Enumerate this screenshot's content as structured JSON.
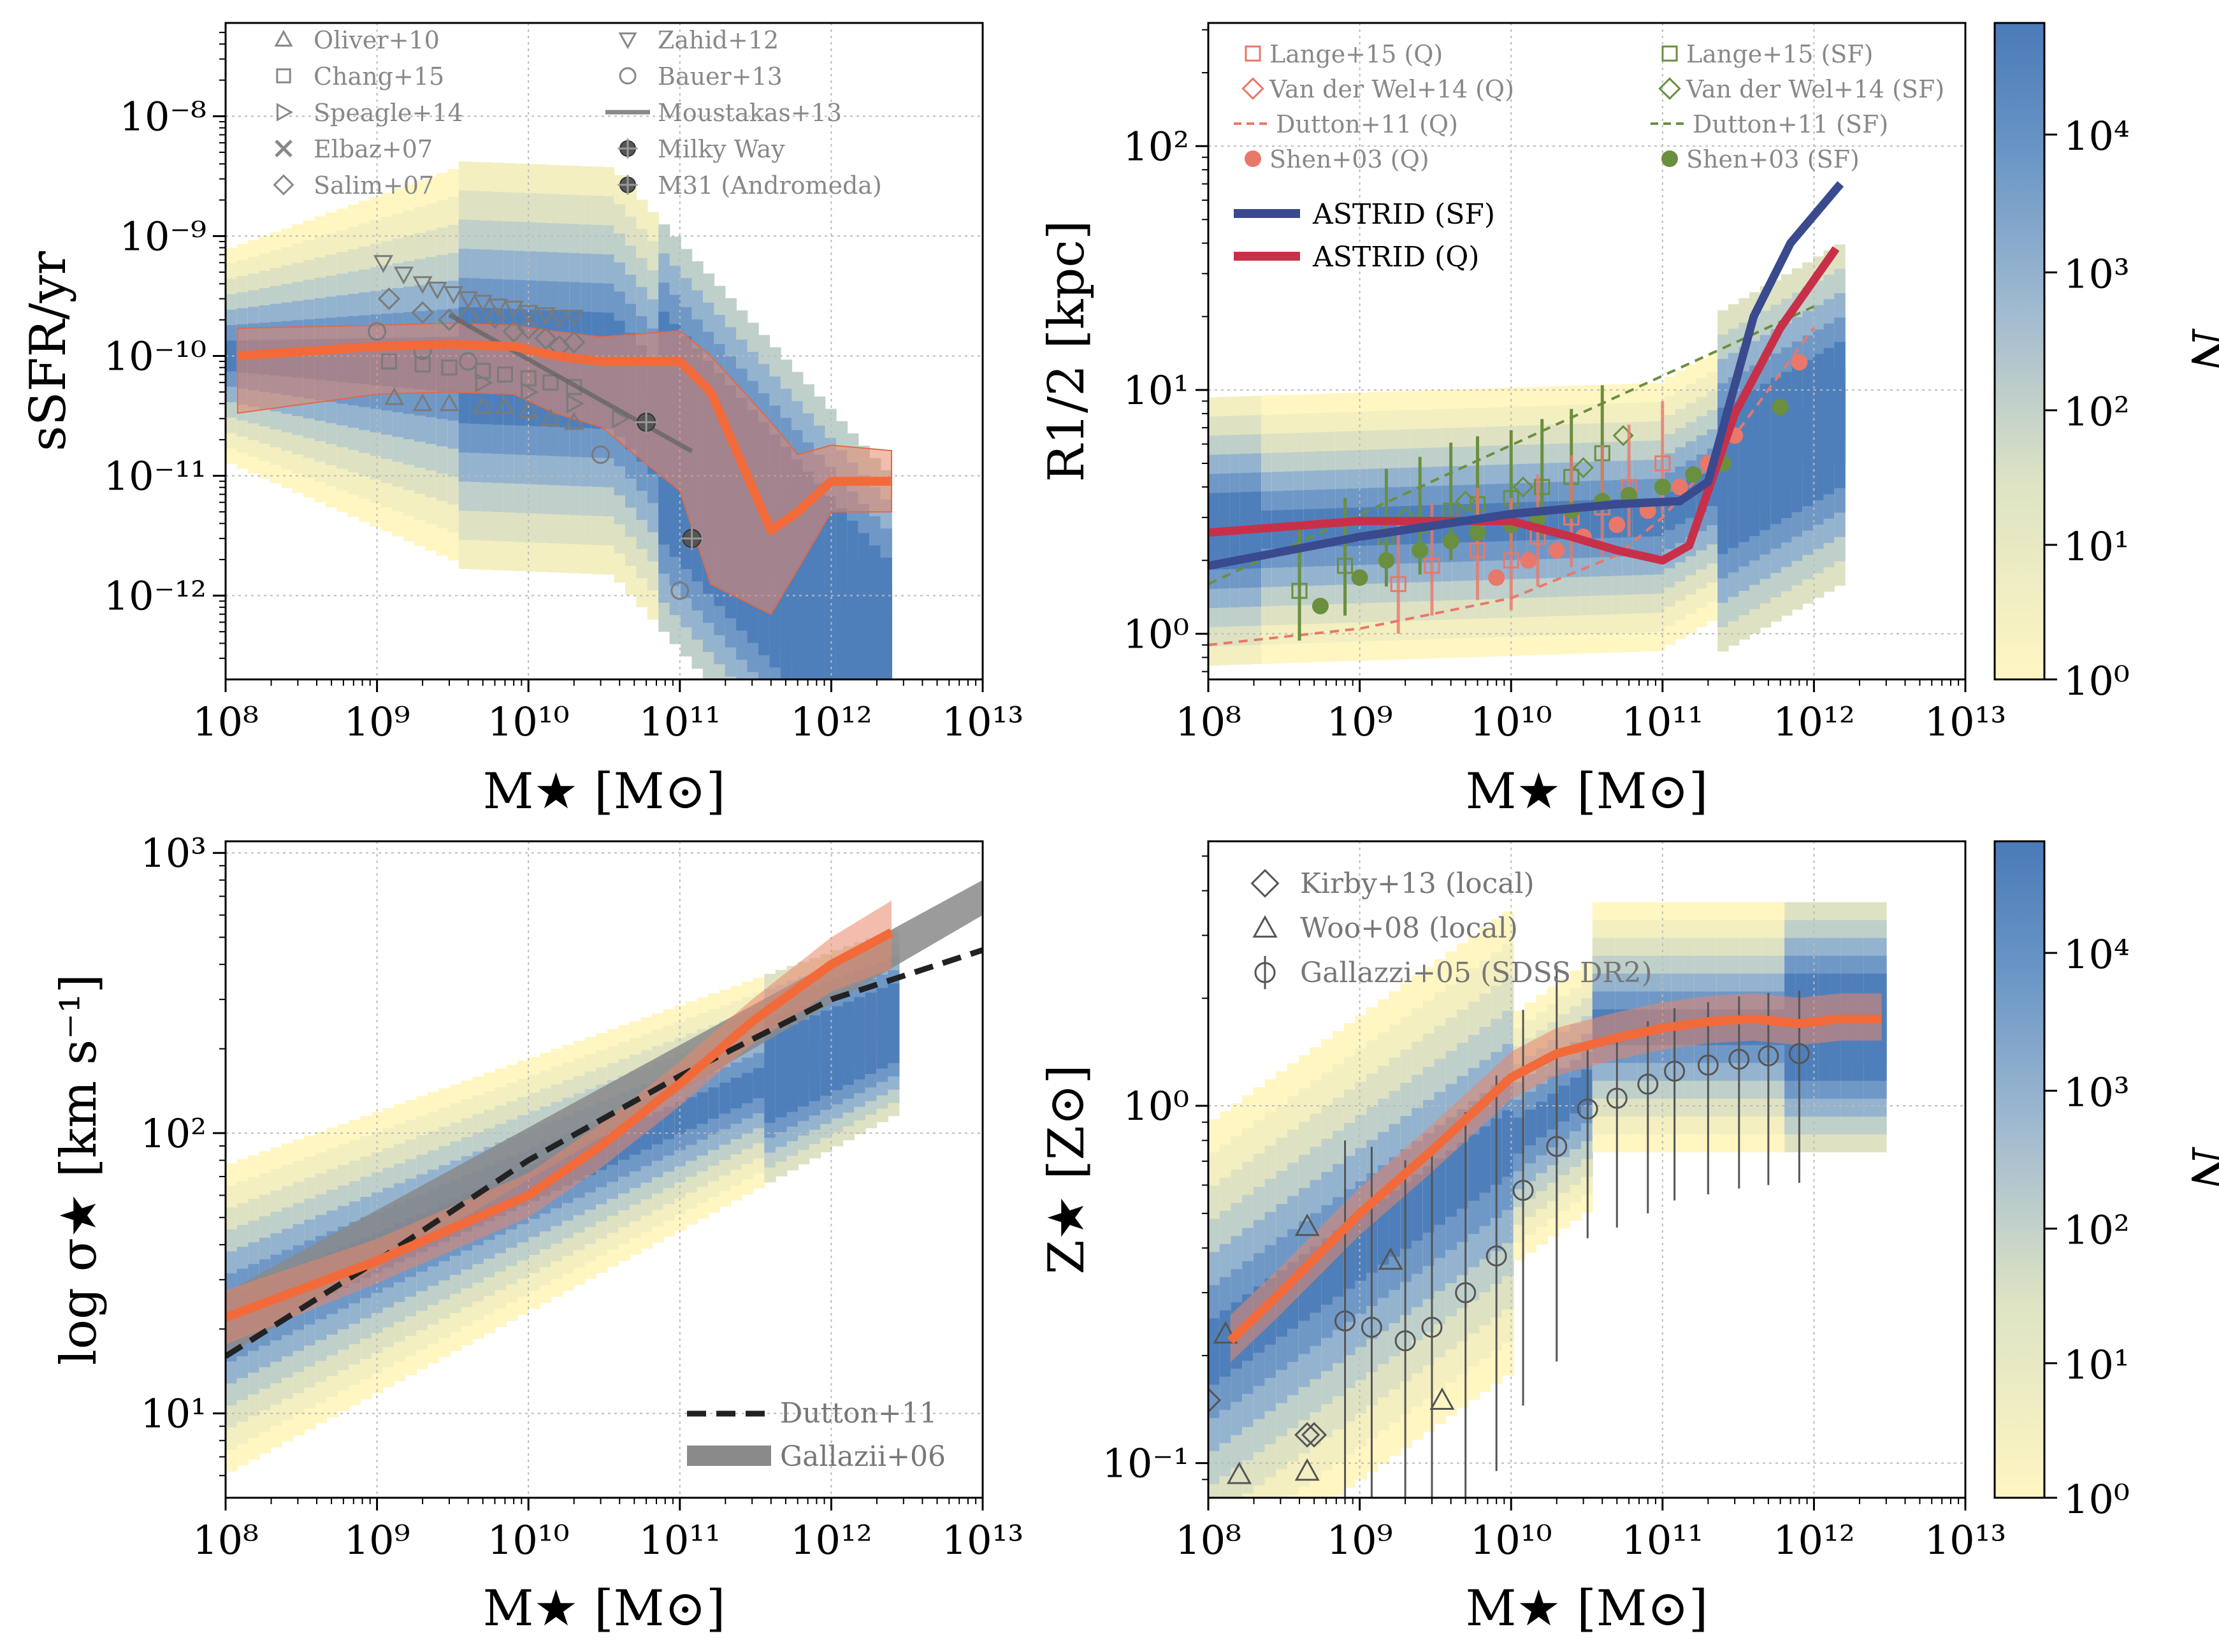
{
  "colors": {
    "astrid_median": "#f26a3a",
    "astrid_band": "#e8866a",
    "astrid_sf": "#3a4a8e",
    "astrid_q": "#c8304a",
    "obs_gray": "#7a7a7a",
    "sf_green": "#6a8f3f",
    "q_red": "#e8786a",
    "density_high": "#4a7ab8",
    "density_low": "#fff6c2"
  },
  "chart_data": [
    {
      "id": "ssfr",
      "type": "scatter",
      "ylabel": "sSFR/yr",
      "xlabel": "M★ [M⊙]",
      "xlog": true,
      "ylog": true,
      "xlim": [
        100000000.0,
        10000000000000.0
      ],
      "ylim": [
        2e-13,
        6e-08
      ],
      "x_ticks": [
        "10⁸",
        "10⁹",
        "10¹⁰",
        "10¹¹",
        "10¹²",
        "10¹³"
      ],
      "y_ticks": [
        "10⁻⁸",
        "10⁻⁹",
        "10⁻¹⁰",
        "10⁻¹¹",
        "10⁻¹²"
      ],
      "grid": true,
      "legend": [
        {
          "label": "Oliver+10",
          "marker": "triangle-up"
        },
        {
          "label": "Zahid+12",
          "marker": "triangle-down"
        },
        {
          "label": "Chang+15",
          "marker": "square"
        },
        {
          "label": "Bauer+13",
          "marker": "circle"
        },
        {
          "label": "Speagle+14",
          "marker": "triangle-right"
        },
        {
          "label": "Moustakas+13",
          "marker": "line"
        },
        {
          "label": "Elbaz+07",
          "marker": "x"
        },
        {
          "label": "Milky Way",
          "marker": "filled-circle-cross"
        },
        {
          "label": "Salim+07",
          "marker": "diamond"
        },
        {
          "label": "M31 (Andromeda)",
          "marker": "filled-circle-cross"
        }
      ],
      "series": [
        {
          "name": "ASTRID median",
          "x": [
            120000000.0,
            1000000000.0,
            3000000000.0,
            8000000000.0,
            15000000000.0,
            30000000000.0,
            100000000000.0,
            160000000000.0,
            400000000000.0,
            600000000000.0,
            1000000000000.0,
            2500000000000.0
          ],
          "y": [
            1e-10,
            1.2e-10,
            1.25e-10,
            1.2e-10,
            1e-10,
            9e-11,
            9e-11,
            5e-11,
            3.5e-12,
            5e-12,
            9e-12,
            9e-12
          ]
        },
        {
          "name": "Oliver+10",
          "x": [
            1300000000.0,
            2000000000.0,
            3000000000.0,
            5000000000.0,
            7000000000.0,
            10000000000.0,
            14000000000.0,
            20000000000.0
          ],
          "y": [
            4.5e-11,
            4e-11,
            4e-11,
            3.8e-11,
            3.8e-11,
            3.5e-11,
            3e-11,
            2.8e-11
          ]
        },
        {
          "name": "Zahid+12",
          "x": [
            1100000000.0,
            1500000000.0,
            2000000000.0,
            2500000000.0,
            3200000000.0,
            4000000000.0,
            5000000000.0,
            6300000000.0,
            8000000000.0,
            10000000000.0,
            13000000000.0,
            16000000000.0,
            20000000000.0
          ],
          "y": [
            6e-10,
            4.8e-10,
            4e-10,
            3.6e-10,
            3.3e-10,
            3e-10,
            2.8e-10,
            2.6e-10,
            2.5e-10,
            2.3e-10,
            2.2e-10,
            2.1e-10,
            2.1e-10
          ]
        },
        {
          "name": "Chang+15",
          "x": [
            1200000000.0,
            2000000000.0,
            3000000000.0,
            5000000000.0,
            7000000000.0,
            10000000000.0,
            14000000000.0,
            20000000000.0
          ],
          "y": [
            9e-11,
            8.5e-11,
            8e-11,
            7.5e-11,
            7e-11,
            6.5e-11,
            6e-11,
            5.5e-11
          ]
        },
        {
          "name": "Bauer+13",
          "x": [
            1000000000.0,
            2000000000.0,
            4000000000.0,
            30000000000.0,
            100000000000.0
          ],
          "y": [
            1.6e-10,
            1.1e-10,
            9e-11,
            1.5e-11,
            1.1e-12
          ]
        },
        {
          "name": "Speagle+14",
          "x": [
            5000000000.0,
            10000000000.0,
            20000000000.0,
            40000000000.0
          ],
          "y": [
            6e-11,
            5e-11,
            4e-11,
            3e-11
          ]
        },
        {
          "name": "Salim+07",
          "x": [
            1200000000.0,
            2000000000.0,
            3000000000.0,
            4000000000.0,
            6000000000.0,
            8000000000.0,
            10000000000.0,
            13000000000.0,
            16000000000.0,
            20000000000.0
          ],
          "y": [
            3e-10,
            2.3e-10,
            2e-10,
            2.1e-10,
            2.1e-10,
            1.6e-10,
            1.7e-10,
            1.4e-10,
            1.2e-10,
            1.3e-10
          ]
        },
        {
          "name": "Moustakas+13",
          "x": [
            3000000000.0,
            120000000000.0
          ],
          "y": [
            2.2e-10,
            1.6e-11
          ]
        },
        {
          "name": "Milky Way",
          "x": [
            60000000000.0
          ],
          "y": [
            2.8e-11
          ]
        },
        {
          "name": "M31 (Andromeda)",
          "x": [
            120000000000.0
          ],
          "y": [
            3e-12
          ]
        }
      ]
    },
    {
      "id": "size",
      "type": "scatter",
      "ylabel": "R1/2 [kpc]",
      "xlabel": "M★ [M⊙]",
      "xlog": true,
      "ylog": true,
      "xlim": [
        100000000.0,
        10000000000000.0
      ],
      "ylim": [
        0.65,
        320
      ],
      "x_ticks": [
        "10⁸",
        "10⁹",
        "10¹⁰",
        "10¹¹",
        "10¹²",
        "10¹³"
      ],
      "y_ticks": [
        "10²",
        "10¹",
        "10⁰"
      ],
      "grid": true,
      "legend": [
        {
          "label": "Lange+15 (Q)",
          "marker": "square"
        },
        {
          "label": "Lange+15 (SF)",
          "marker": "square"
        },
        {
          "label": "Van der Wel+14 (Q)",
          "marker": "diamond"
        },
        {
          "label": "Van der Wel+14 (SF)",
          "marker": "diamond"
        },
        {
          "label": "Dutton+11 (Q)",
          "marker": "dashed"
        },
        {
          "label": "Dutton+11 (SF)",
          "marker": "dashed"
        },
        {
          "label": "Shen+03 (Q)",
          "marker": "filled-circle"
        },
        {
          "label": "Shen+03 (SF)",
          "marker": "filled-circle"
        },
        {
          "label": "ASTRID (SF)",
          "marker": "line"
        },
        {
          "label": "ASTRID (Q)",
          "marker": "line"
        }
      ],
      "series": [
        {
          "name": "ASTRID (SF)",
          "x": [
            100000000.0,
            1000000000.0,
            10000000000.0,
            50000000000.0,
            130000000000.0,
            200000000000.0,
            400000000000.0,
            700000000000.0,
            1500000000000.0
          ],
          "y": [
            1.9,
            2.5,
            3.1,
            3.4,
            3.5,
            4.2,
            20,
            40,
            70
          ]
        },
        {
          "name": "ASTRID (Q)",
          "x": [
            100000000.0,
            1000000000.0,
            10000000000.0,
            25000000000.0,
            50000000000.0,
            100000000000.0,
            150000000000.0,
            300000000000.0,
            600000000000.0,
            1400000000000.0
          ],
          "y": [
            2.6,
            2.9,
            2.9,
            2.5,
            2.2,
            2.0,
            2.3,
            8,
            18,
            38
          ]
        },
        {
          "name": "Shen+03 (SF)",
          "x": [
            550000000.0,
            1000000000.0,
            1500000000.0,
            2500000000.0,
            4000000000.0,
            6000000000.0,
            10000000000.0,
            15000000000.0,
            25000000000.0,
            40000000000.0,
            60000000000.0,
            100000000000.0,
            160000000000.0,
            250000000000.0,
            600000000000.0
          ],
          "y": [
            1.3,
            1.7,
            2.0,
            2.2,
            2.4,
            2.6,
            2.8,
            3.0,
            3.2,
            3.5,
            3.7,
            4.0,
            4.5,
            5.0,
            8.5
          ]
        },
        {
          "name": "Shen+03 (Q)",
          "x": [
            8000000000.0,
            13000000000.0,
            20000000000.0,
            30000000000.0,
            50000000000.0,
            80000000000.0,
            130000000000.0,
            200000000000.0,
            300000000000.0,
            800000000000.0
          ],
          "y": [
            1.7,
            2.0,
            2.2,
            2.5,
            2.8,
            3.2,
            4.0,
            5.0,
            6.5,
            13
          ]
        },
        {
          "name": "Dutton+11 (SF)",
          "x": [
            100000000.0,
            1000000000000.0
          ],
          "y": [
            1.6,
            22
          ]
        },
        {
          "name": "Dutton+11 (Q)",
          "x": [
            100000000.0,
            1000000000000.0
          ],
          "y": [
            0.9,
            18
          ]
        }
      ]
    },
    {
      "id": "sigma",
      "type": "line",
      "ylabel": "log σ★ [km s⁻¹]",
      "xlabel": "M★ [M⊙]",
      "xlog": true,
      "ylog": true,
      "xlim": [
        100000000.0,
        10000000000000.0
      ],
      "ylim": [
        5,
        1100
      ],
      "x_ticks": [
        "10⁸",
        "10⁹",
        "10¹⁰",
        "10¹¹",
        "10¹²",
        "10¹³"
      ],
      "y_ticks": [
        "10³",
        "10²",
        "10¹"
      ],
      "grid": true,
      "legend": [
        {
          "label": "Dutton+11",
          "marker": "dashed"
        },
        {
          "label": "Gallazii+06",
          "marker": "band"
        }
      ],
      "series": [
        {
          "name": "ASTRID median",
          "x": [
            100000000.0,
            1000000000.0,
            10000000000.0,
            30000000000.0,
            100000000000.0,
            300000000000.0,
            1000000000000.0,
            2500000000000.0
          ],
          "y": [
            22,
            35,
            60,
            90,
            150,
            250,
            400,
            520
          ]
        },
        {
          "name": "Dutton+11",
          "x": [
            100000000.0,
            1000000000.0,
            10000000000.0,
            100000000000.0,
            1000000000000.0,
            10000000000000.0
          ],
          "y": [
            16,
            35,
            80,
            160,
            300,
            450
          ]
        },
        {
          "name": "Gallazii+06",
          "x": [
            100000000.0,
            10000000000000.0
          ],
          "y": [
            20,
            780
          ]
        }
      ]
    },
    {
      "id": "metallicity",
      "type": "scatter",
      "ylabel": "Z★ [Z⊙]",
      "xlabel": "M★ [M⊙]",
      "xlog": true,
      "ylog": true,
      "xlim": [
        100000000.0,
        10000000000000.0
      ],
      "ylim": [
        0.08,
        5.5
      ],
      "x_ticks": [
        "10⁸",
        "10⁹",
        "10¹⁰",
        "10¹¹",
        "10¹²",
        "10¹³"
      ],
      "y_ticks": [
        "10⁰",
        "10⁻¹"
      ],
      "grid": true,
      "legend": [
        {
          "label": "Kirby+13 (local)",
          "marker": "diamond"
        },
        {
          "label": "Woo+08 (local)",
          "marker": "triangle-up"
        },
        {
          "label": "Gallazzi+05 (SDSS DR2)",
          "marker": "circle-errorbar"
        }
      ],
      "series": [
        {
          "name": "ASTRID median",
          "x": [
            140000000.0,
            300000000.0,
            1000000000.0,
            3000000000.0,
            10000000000.0,
            20000000000.0,
            50000000000.0,
            100000000000.0,
            200000000000.0,
            400000000000.0,
            800000000000.0,
            1500000000000.0,
            2800000000000.0
          ],
          "y": [
            0.22,
            0.3,
            0.5,
            0.75,
            1.2,
            1.4,
            1.55,
            1.65,
            1.72,
            1.75,
            1.7,
            1.75,
            1.75
          ]
        },
        {
          "name": "Gallazzi+05 (SDSS DR2)",
          "x": [
            800000000.0,
            1200000000.0,
            2000000000.0,
            3000000000.0,
            5000000000.0,
            8000000000.0,
            12000000000.0,
            20000000000.0,
            32000000000.0,
            50000000000.0,
            80000000000.0,
            120000000000.0,
            200000000000.0,
            320000000000.0,
            500000000000.0,
            800000000000.0
          ],
          "y": [
            0.25,
            0.24,
            0.22,
            0.24,
            0.3,
            0.38,
            0.58,
            0.77,
            0.98,
            1.05,
            1.15,
            1.25,
            1.3,
            1.35,
            1.38,
            1.4
          ]
        },
        {
          "name": "Woo+08 (local)",
          "x": [
            130000000.0,
            160000000.0,
            450000000.0,
            450000000.0,
            1600000000.0,
            3500000000.0
          ],
          "y": [
            0.23,
            0.093,
            0.46,
            0.095,
            0.37,
            0.15
          ]
        },
        {
          "name": "Kirby+13 (local)",
          "x": [
            100000000.0,
            450000000.0,
            500000000.0
          ],
          "y": [
            0.15,
            0.12,
            0.12
          ]
        }
      ]
    }
  ],
  "colorbars": [
    {
      "label": "N",
      "ticks": [
        "10⁴",
        "10³",
        "10²",
        "10¹",
        "10⁰"
      ]
    },
    {
      "label": "N",
      "ticks": [
        "10⁴",
        "10³",
        "10²",
        "10¹",
        "10⁰"
      ]
    }
  ]
}
